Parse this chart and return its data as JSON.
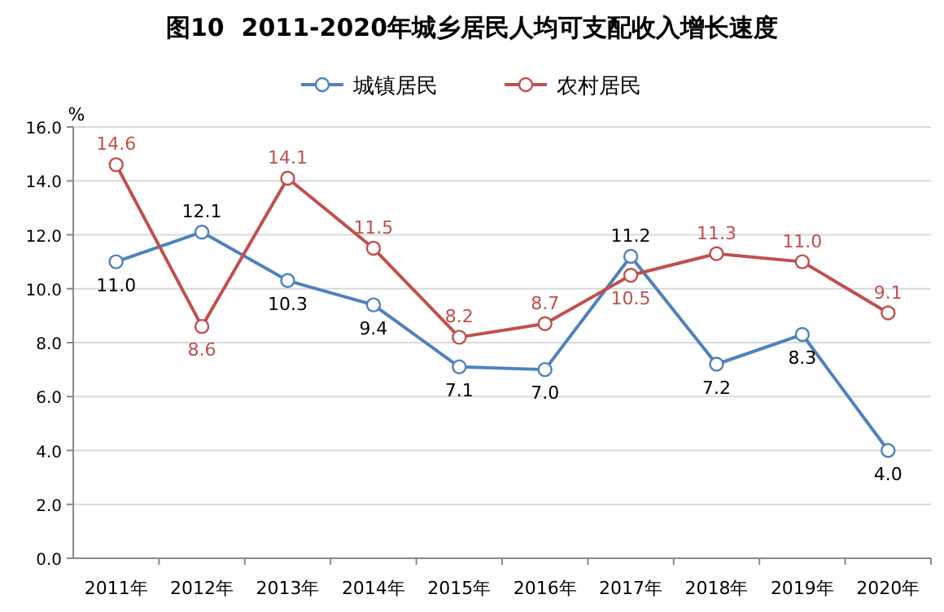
{
  "chart_data": {
    "type": "line",
    "title": "图10  2011-2020年城乡居民人均可支配收入增长速度",
    "ylabel": "%",
    "categories": [
      "2011年",
      "2012年",
      "2013年",
      "2014年",
      "2015年",
      "2016年",
      "2017年",
      "2018年",
      "2019年",
      "2020年"
    ],
    "series": [
      {
        "name": "城镇居民",
        "color": "#4f81bd",
        "values": [
          11.0,
          12.1,
          10.3,
          9.4,
          7.1,
          7.0,
          11.2,
          7.2,
          8.3,
          4.0
        ],
        "value_labels": [
          "11.0",
          "12.1",
          "10.3",
          "9.4",
          "7.1",
          "7.0",
          "11.2",
          "7.2",
          "8.3",
          "4.0"
        ]
      },
      {
        "name": "农村居民",
        "color": "#c0504d",
        "values": [
          14.6,
          8.6,
          14.1,
          11.5,
          8.2,
          8.7,
          10.5,
          11.3,
          11.0,
          9.1
        ],
        "value_labels": [
          "14.6",
          "8.6",
          "14.1",
          "11.5",
          "8.2",
          "8.7",
          "10.5",
          "11.3",
          "11.0",
          "9.1"
        ]
      }
    ],
    "ylim": [
      0,
      16
    ],
    "yticks": [
      {
        "value": 0,
        "label": "0.0"
      },
      {
        "value": 2,
        "label": "2.0"
      },
      {
        "value": 4,
        "label": "4.0"
      },
      {
        "value": 6,
        "label": "6.0"
      },
      {
        "value": 8,
        "label": "8.0"
      },
      {
        "value": 10,
        "label": "10.0"
      },
      {
        "value": 12,
        "label": "12.0"
      },
      {
        "value": 14,
        "label": "14.0"
      },
      {
        "value": 16,
        "label": "16.0"
      }
    ],
    "grid": "y",
    "legend": "top",
    "marker": "circle",
    "line_style": "solid"
  }
}
